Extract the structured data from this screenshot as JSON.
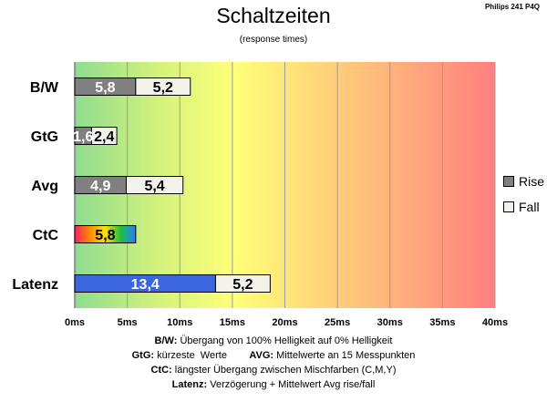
{
  "header": {
    "title": "Schaltzeiten",
    "subtitle": "(response times)",
    "corner_label": "Philips 241 P4Q"
  },
  "legend": {
    "items": [
      {
        "label": "Rise",
        "color": "#808080"
      },
      {
        "label": "Fall",
        "color": "#f2f2ea"
      }
    ]
  },
  "notes": [
    {
      "key": "B/W:",
      "text": " Übergang von 100% Helligkeit auf 0% Helligkeit"
    },
    {
      "key": "GtG:",
      "text": " kürzeste  Werte        ",
      "key2": "AVG:",
      "text2": " Mittelwerte an 15 Messpunkten"
    },
    {
      "key": "CtC:",
      "text": " längster Übergang  zwischen Mischfarben (C,M,Y)"
    },
    {
      "key": "Latenz:",
      "text": " Verzögerung  + Mittelwert Avg rise/fall"
    }
  ],
  "chart_data": {
    "type": "bar",
    "orientation": "horizontal",
    "stacked": true,
    "categories": [
      "B/W",
      "GtG",
      "Avg",
      "CtC",
      "Latenz"
    ],
    "series": [
      {
        "name": "Rise",
        "values": [
          5.8,
          1.6,
          4.9,
          5.8,
          13.4
        ],
        "labels": [
          "5,8",
          "1,6",
          "4,9",
          "5,8",
          "13,4"
        ]
      },
      {
        "name": "Fall",
        "values": [
          5.2,
          2.4,
          5.4,
          null,
          5.2
        ],
        "labels": [
          "5,2",
          "2,4",
          "5,4",
          "",
          "5,2"
        ]
      }
    ],
    "special_bar_colors": {
      "Latenz": "#3a66e0",
      "CtC": "rainbow"
    },
    "xlim": [
      0,
      40
    ],
    "xticks": [
      "0ms",
      "5ms",
      "10ms",
      "15ms",
      "20ms",
      "25ms",
      "30ms",
      "35ms",
      "40ms"
    ],
    "background_gradient": [
      "#8fdc8f",
      "#ffff78",
      "#ff7f7f"
    ],
    "grid": true,
    "legend_position": "right"
  }
}
